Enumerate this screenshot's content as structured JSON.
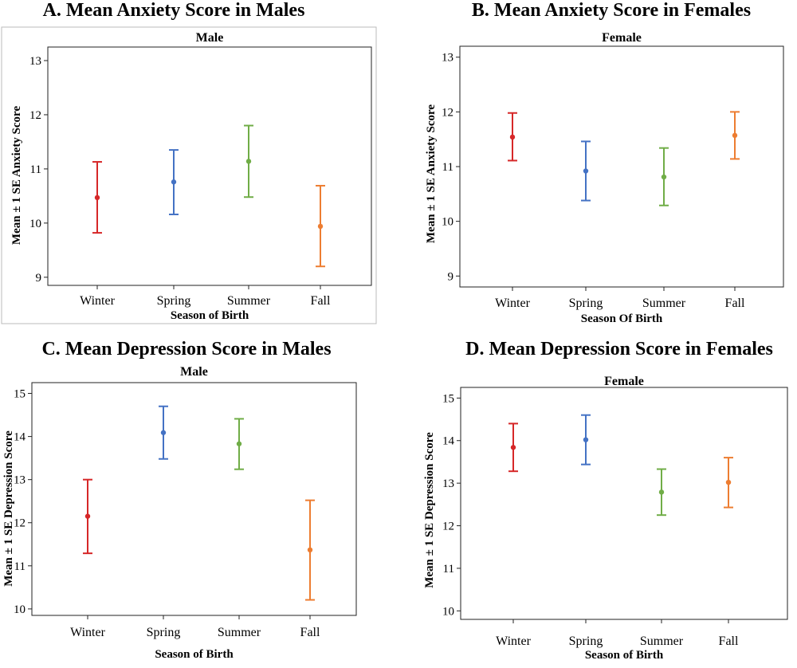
{
  "chart_data": [
    {
      "type": "errorbar",
      "panel_heading": "A.  Mean Anxiety Score in Males",
      "title": "Male",
      "xlabel": "Season of Birth",
      "ylabel": "Mean ± 1 SE Anxiety Score",
      "categories": [
        "Winter",
        "Spring",
        "Summer",
        "Fall"
      ],
      "means": [
        10.47,
        10.76,
        11.14,
        9.94
      ],
      "lower": [
        9.82,
        10.16,
        10.48,
        9.2
      ],
      "upper": [
        11.13,
        11.35,
        11.8,
        10.69
      ],
      "ylim": [
        8.85,
        13.25
      ],
      "yticks": [
        9,
        10,
        11,
        12,
        13
      ],
      "colors": [
        "#d62728",
        "#4472c4",
        "#70ad47",
        "#ed7d31"
      ]
    },
    {
      "type": "errorbar",
      "panel_heading": "B.  Mean Anxiety Score in Females",
      "title": "Female",
      "xlabel": "Season Of Birth",
      "ylabel": "Mean ± 1 SE Anxiety Score",
      "categories": [
        "Winter",
        "Spring",
        "Summer",
        "Fall"
      ],
      "means": [
        11.54,
        10.92,
        10.81,
        11.57
      ],
      "lower": [
        11.11,
        10.38,
        10.29,
        11.14
      ],
      "upper": [
        11.98,
        11.46,
        11.34,
        12.0
      ],
      "ylim": [
        8.8,
        13.2
      ],
      "yticks": [
        9,
        10,
        11,
        12,
        13
      ],
      "colors": [
        "#d62728",
        "#4472c4",
        "#70ad47",
        "#ed7d31"
      ]
    },
    {
      "type": "errorbar",
      "panel_heading": "C.  Mean Depression Score in Males",
      "title": "Male",
      "xlabel": "Season of Birth",
      "ylabel": "Mean ± 1 SE Depression Score",
      "categories": [
        "Winter",
        "Spring",
        "Summer",
        "Fall"
      ],
      "means": [
        12.15,
        14.09,
        13.83,
        11.37
      ],
      "lower": [
        11.29,
        13.48,
        13.24,
        10.21
      ],
      "upper": [
        13.0,
        14.7,
        14.41,
        12.52
      ],
      "ylim": [
        9.85,
        15.25
      ],
      "yticks": [
        10,
        11,
        12,
        13,
        14,
        15
      ],
      "colors": [
        "#d62728",
        "#4472c4",
        "#70ad47",
        "#ed7d31"
      ]
    },
    {
      "type": "errorbar",
      "panel_heading": "D. Mean Depression Score in Females",
      "title": "Female",
      "xlabel": "Season of Birth",
      "ylabel": "Mean ± 1 SE Depression Score",
      "categories": [
        "Winter",
        "Spring",
        "Summer",
        "Fall"
      ],
      "means": [
        13.84,
        14.02,
        12.79,
        13.02
      ],
      "lower": [
        13.28,
        13.44,
        12.25,
        12.43
      ],
      "upper": [
        14.4,
        14.6,
        13.33,
        13.6
      ],
      "ylim": [
        9.8,
        15.25
      ],
      "yticks": [
        10,
        11,
        12,
        13,
        14,
        15
      ],
      "colors": [
        "#d62728",
        "#4472c4",
        "#70ad47",
        "#ed7d31"
      ]
    }
  ]
}
